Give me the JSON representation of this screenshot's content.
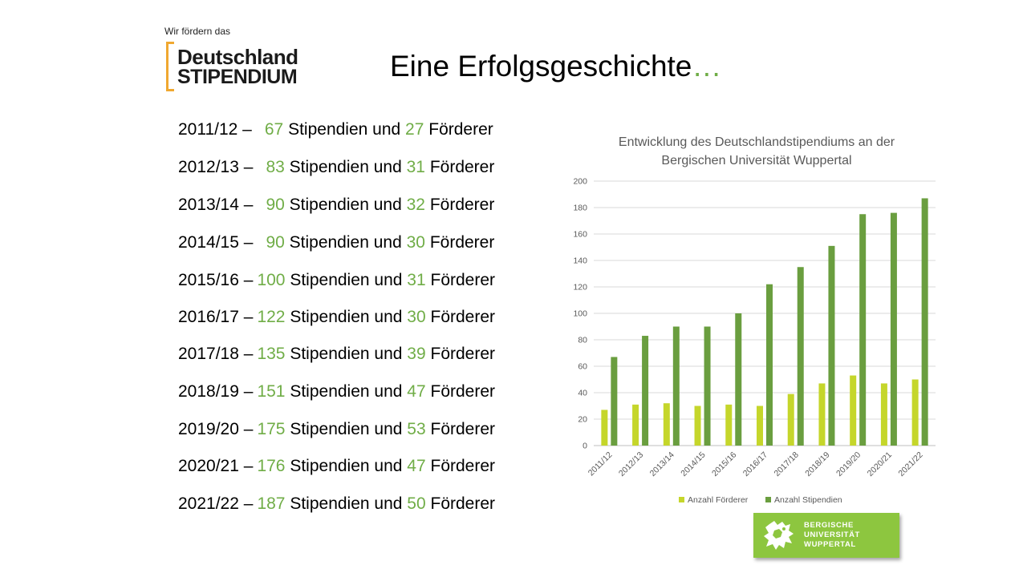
{
  "logo": {
    "tagline": "Wir fördern das",
    "line1": "Deutschland",
    "line2": "STIPENDIUM"
  },
  "title": {
    "text": "Eine Erfolgsgeschichte",
    "accent": "…"
  },
  "summary": {
    "word_stipendien": "Stipendien und",
    "word_foerderer": "Förderer",
    "rows": [
      {
        "year": "2011/12 –",
        "stipendien": "67",
        "foerderer": "27"
      },
      {
        "year": "2012/13 –",
        "stipendien": "83",
        "foerderer": "31"
      },
      {
        "year": "2013/14 –",
        "stipendien": "90",
        "foerderer": "32"
      },
      {
        "year": "2014/15 –",
        "stipendien": "90",
        "foerderer": "30"
      },
      {
        "year": "2015/16 –",
        "stipendien": "100",
        "foerderer": "31"
      },
      {
        "year": "2016/17 –",
        "stipendien": "122",
        "foerderer": "30"
      },
      {
        "year": "2017/18 –",
        "stipendien": "135",
        "foerderer": "39"
      },
      {
        "year": "2018/19 –",
        "stipendien": "151",
        "foerderer": "47"
      },
      {
        "year": "2019/20 –",
        "stipendien": "175",
        "foerderer": "53"
      },
      {
        "year": "2020/21 –",
        "stipendien": "176",
        "foerderer": "47"
      },
      {
        "year": "2021/22 –",
        "stipendien": "187",
        "foerderer": "50"
      }
    ]
  },
  "chart_data": {
    "type": "bar",
    "title": [
      "Entwicklung des Deutschlandstipendiums an der",
      "Bergischen Universität Wuppertal"
    ],
    "categories": [
      "2011/12",
      "2012/13",
      "2013/14",
      "2014/15",
      "2015/16",
      "2016/17",
      "2017/18",
      "2018/19",
      "2019/20",
      "2020/21",
      "2021/22"
    ],
    "series": [
      {
        "name": "Anzahl Förderer",
        "color": "#c5d62b",
        "values": [
          27,
          31,
          32,
          30,
          31,
          30,
          39,
          47,
          53,
          47,
          50
        ]
      },
      {
        "name": "Anzahl Stipendien",
        "color": "#6a9e3f",
        "values": [
          67,
          83,
          90,
          90,
          100,
          122,
          135,
          151,
          175,
          176,
          187
        ]
      }
    ],
    "ylim": [
      0,
      200
    ],
    "yticks": [
      0,
      20,
      40,
      60,
      80,
      100,
      120,
      140,
      160,
      180,
      200
    ],
    "grid": true,
    "legend": "bottom"
  },
  "university": {
    "line1": "BERGISCHE",
    "line2": "UNIVERSITÄT",
    "line3": "WUPPERTAL",
    "color": "#8dc63f"
  }
}
